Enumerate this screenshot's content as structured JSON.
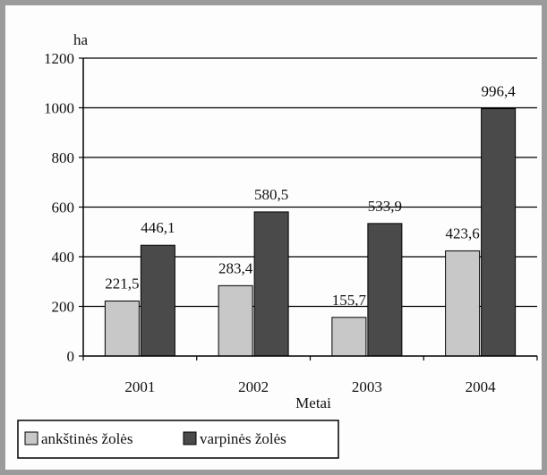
{
  "chart_data": {
    "type": "bar",
    "categories": [
      "2001",
      "2002",
      "2003",
      "2004"
    ],
    "series": [
      {
        "name": "ankštinės žolės",
        "values": [
          221.5,
          283.4,
          155.7,
          423.6
        ],
        "labels": [
          "221,5",
          "283,4",
          "155,7",
          "423,6"
        ],
        "color": "#c8c8c8"
      },
      {
        "name": "varpinės žolės",
        "values": [
          446.1,
          580.5,
          533.9,
          996.4
        ],
        "labels": [
          "446,1",
          "580,5",
          "533,9",
          "996,4"
        ],
        "color": "#4a4a4a"
      }
    ],
    "title": "",
    "xlabel": "Metai",
    "ylabel": "ha",
    "ylim": [
      0,
      1200
    ],
    "yticks": [
      0,
      200,
      400,
      600,
      800,
      1000,
      1200
    ],
    "grid": true,
    "legend": "bottom-left"
  }
}
